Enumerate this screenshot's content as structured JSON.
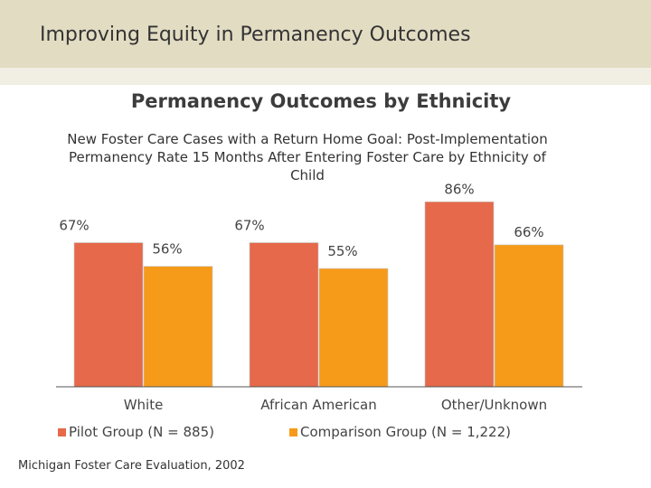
{
  "header": {
    "title": "Improving Equity in Permanency Outcomes"
  },
  "chart_data": {
    "type": "bar",
    "title": "Permanency Outcomes by Ethnicity",
    "subtitle": "New Foster Care Cases with a Return Home Goal: Post-Implementation Permanency Rate 15 Months After Entering Foster Care by Ethnicity of Child",
    "categories": [
      "White",
      "African American",
      "Other/Unknown"
    ],
    "series": [
      {
        "name": "Pilot Group (N = 885)",
        "values": [
          67,
          67,
          86
        ],
        "labels": [
          "67%",
          "67%",
          "86%"
        ],
        "color": "#e5694a"
      },
      {
        "name": "Comparison Group (N = 1,222)",
        "values": [
          56,
          55,
          66
        ],
        "labels": [
          "56%",
          "55%",
          "66%"
        ],
        "color": "#f69a1a"
      }
    ],
    "ylim": [
      0,
      100
    ],
    "grid": false,
    "legend_position": "bottom"
  },
  "source": "Michigan Foster Care Evaluation, 2002"
}
